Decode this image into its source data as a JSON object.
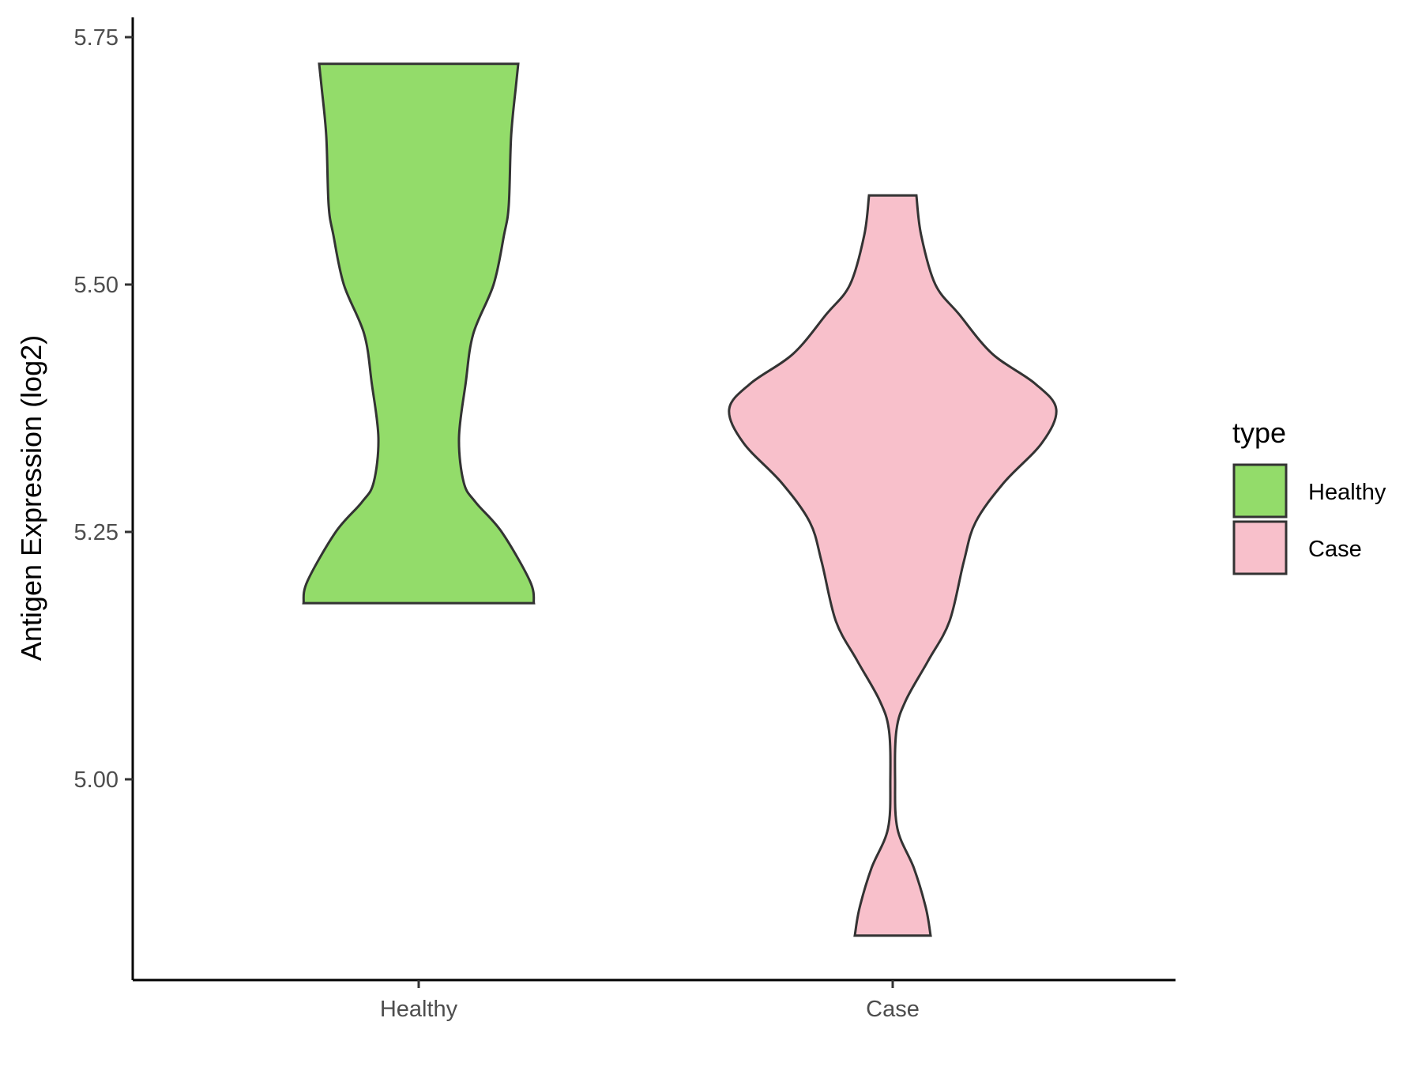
{
  "chart_data": {
    "type": "violin",
    "title": "",
    "xlabel": "",
    "ylabel": "Antigen Expression (log2)",
    "categories": [
      "Healthy",
      "Case"
    ],
    "ylim": [
      4.8,
      5.77
    ],
    "yticks": [
      5.0,
      5.25,
      5.5,
      5.75
    ],
    "ytick_labels": [
      "5.00",
      "5.25",
      "5.50",
      "5.75"
    ],
    "grid": false,
    "legend": {
      "title": "type",
      "placement": "right",
      "entries": [
        {
          "label": "Healthy",
          "color": "#93DC6A"
        },
        {
          "label": "Case",
          "color": "#F8C0CB"
        }
      ]
    },
    "violins": [
      {
        "name": "Healthy",
        "color": "#93DC6A",
        "min": 5.178,
        "max": 5.723,
        "profile": [
          [
            5.178,
            0.243
          ],
          [
            5.2,
            0.235
          ],
          [
            5.25,
            0.175
          ],
          [
            5.28,
            0.12
          ],
          [
            5.3,
            0.095
          ],
          [
            5.345,
            0.085
          ],
          [
            5.4,
            0.099
          ],
          [
            5.45,
            0.115
          ],
          [
            5.5,
            0.158
          ],
          [
            5.55,
            0.18
          ],
          [
            5.58,
            0.19
          ],
          [
            5.65,
            0.195
          ],
          [
            5.7,
            0.205
          ],
          [
            5.723,
            0.21
          ]
        ]
      },
      {
        "name": "Case",
        "color": "#F8C0CB",
        "min": 4.842,
        "max": 5.59,
        "profile": [
          [
            4.842,
            0.08
          ],
          [
            4.87,
            0.07
          ],
          [
            4.91,
            0.045
          ],
          [
            4.95,
            0.01
          ],
          [
            5.0,
            0.005
          ],
          [
            5.05,
            0.008
          ],
          [
            5.08,
            0.028
          ],
          [
            5.12,
            0.075
          ],
          [
            5.16,
            0.12
          ],
          [
            5.22,
            0.15
          ],
          [
            5.26,
            0.175
          ],
          [
            5.3,
            0.235
          ],
          [
            5.34,
            0.315
          ],
          [
            5.374,
            0.345
          ],
          [
            5.4,
            0.3
          ],
          [
            5.43,
            0.21
          ],
          [
            5.47,
            0.14
          ],
          [
            5.5,
            0.09
          ],
          [
            5.55,
            0.06
          ],
          [
            5.59,
            0.05
          ]
        ]
      }
    ]
  }
}
